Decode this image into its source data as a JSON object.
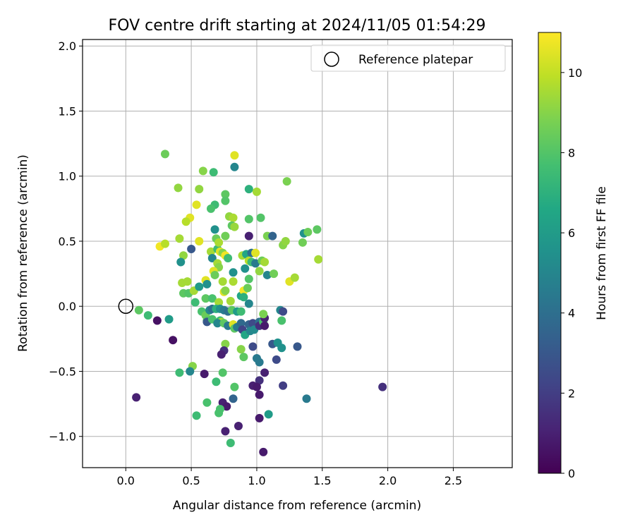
{
  "chart_data": {
    "type": "scatter",
    "title": "FOV centre drift starting at 2024/11/05 01:54:29",
    "xlabel": "Angular distance from reference (arcmin)",
    "ylabel": "Rotation from reference (arcmin)",
    "xlim": [
      -0.33,
      2.95
    ],
    "ylim": [
      -1.24,
      2.05
    ],
    "xticks": [
      0.0,
      0.5,
      1.0,
      1.5,
      2.0,
      2.5
    ],
    "xtick_labels": [
      "0.0",
      "0.5",
      "1.0",
      "1.5",
      "2.0",
      "2.5"
    ],
    "yticks": [
      -1.0,
      -0.5,
      0.0,
      0.5,
      1.0,
      1.5,
      2.0
    ],
    "ytick_labels": [
      "−1.0",
      "−0.5",
      "0.0",
      "0.5",
      "1.0",
      "1.5",
      "2.0"
    ],
    "grid": true,
    "legend": {
      "position": "top-right",
      "entries": [
        "Reference platepar"
      ]
    },
    "reference_point": {
      "x": 0.0,
      "y": 0.0
    },
    "colorbar": {
      "label": "Hours from first FF file",
      "colormap": "viridis",
      "range": [
        0,
        11
      ],
      "ticks": [
        0,
        2,
        4,
        6,
        8,
        10
      ],
      "tick_labels": [
        "0",
        "2",
        "4",
        "6",
        "8",
        "10"
      ]
    },
    "points": [
      {
        "x": 0.3,
        "y": 1.17,
        "c": 8.5
      },
      {
        "x": 0.83,
        "y": 1.16,
        "c": 10.5
      },
      {
        "x": 0.83,
        "y": 1.07,
        "c": 5.0
      },
      {
        "x": 0.59,
        "y": 1.04,
        "c": 9.0
      },
      {
        "x": 0.67,
        "y": 1.03,
        "c": 7.5
      },
      {
        "x": 0.4,
        "y": 0.91,
        "c": 9.2
      },
      {
        "x": 0.56,
        "y": 0.9,
        "c": 9.2
      },
      {
        "x": 0.94,
        "y": 0.9,
        "c": 7.0
      },
      {
        "x": 1.0,
        "y": 0.88,
        "c": 9.5
      },
      {
        "x": 1.23,
        "y": 0.96,
        "c": 8.8
      },
      {
        "x": 0.76,
        "y": 0.86,
        "c": 8.2
      },
      {
        "x": 0.76,
        "y": 0.81,
        "c": 8.0
      },
      {
        "x": 0.68,
        "y": 0.78,
        "c": 7.5
      },
      {
        "x": 0.54,
        "y": 0.78,
        "c": 10.5
      },
      {
        "x": 0.65,
        "y": 0.75,
        "c": 7.8
      },
      {
        "x": 0.49,
        "y": 0.68,
        "c": 10.5
      },
      {
        "x": 0.46,
        "y": 0.65,
        "c": 9.8
      },
      {
        "x": 0.79,
        "y": 0.69,
        "c": 9.2
      },
      {
        "x": 0.82,
        "y": 0.68,
        "c": 9.6
      },
      {
        "x": 0.94,
        "y": 0.67,
        "c": 8.0
      },
      {
        "x": 1.03,
        "y": 0.68,
        "c": 8.0
      },
      {
        "x": 0.68,
        "y": 0.59,
        "c": 5.5
      },
      {
        "x": 0.81,
        "y": 0.62,
        "c": 8.2
      },
      {
        "x": 0.83,
        "y": 0.61,
        "c": 9.3
      },
      {
        "x": 0.76,
        "y": 0.54,
        "c": 8.6
      },
      {
        "x": 0.69,
        "y": 0.52,
        "c": 8.5
      },
      {
        "x": 0.94,
        "y": 0.54,
        "c": 1.0
      },
      {
        "x": 1.08,
        "y": 0.54,
        "c": 8.8
      },
      {
        "x": 1.12,
        "y": 0.54,
        "c": 3.5
      },
      {
        "x": 1.2,
        "y": 0.47,
        "c": 9.0
      },
      {
        "x": 1.22,
        "y": 0.5,
        "c": 9.2
      },
      {
        "x": 1.36,
        "y": 0.56,
        "c": 5.5
      },
      {
        "x": 1.39,
        "y": 0.57,
        "c": 8.5
      },
      {
        "x": 1.46,
        "y": 0.59,
        "c": 8.2
      },
      {
        "x": 1.35,
        "y": 0.49,
        "c": 8.6
      },
      {
        "x": 1.47,
        "y": 0.36,
        "c": 9.5
      },
      {
        "x": 0.26,
        "y": 0.46,
        "c": 10.8
      },
      {
        "x": 0.3,
        "y": 0.48,
        "c": 9.8
      },
      {
        "x": 0.41,
        "y": 0.52,
        "c": 9.5
      },
      {
        "x": 0.56,
        "y": 0.5,
        "c": 10.5
      },
      {
        "x": 0.5,
        "y": 0.44,
        "c": 3.0
      },
      {
        "x": 0.44,
        "y": 0.39,
        "c": 9.2
      },
      {
        "x": 0.42,
        "y": 0.34,
        "c": 5.5
      },
      {
        "x": 0.65,
        "y": 0.42,
        "c": 9.5
      },
      {
        "x": 0.7,
        "y": 0.44,
        "c": 7.5
      },
      {
        "x": 0.72,
        "y": 0.42,
        "c": 10.5
      },
      {
        "x": 0.71,
        "y": 0.49,
        "c": 9.6
      },
      {
        "x": 0.74,
        "y": 0.41,
        "c": 9.0
      },
      {
        "x": 0.76,
        "y": 0.39,
        "c": 10.8
      },
      {
        "x": 0.78,
        "y": 0.37,
        "c": 7.5
      },
      {
        "x": 0.66,
        "y": 0.37,
        "c": 5.0
      },
      {
        "x": 0.7,
        "y": 0.33,
        "c": 9.5
      },
      {
        "x": 0.71,
        "y": 0.3,
        "c": 9.0
      },
      {
        "x": 0.67,
        "y": 0.27,
        "c": 10.5
      },
      {
        "x": 0.68,
        "y": 0.24,
        "c": 8.5
      },
      {
        "x": 0.89,
        "y": 0.39,
        "c": 9.5
      },
      {
        "x": 0.92,
        "y": 0.4,
        "c": 6.5
      },
      {
        "x": 0.96,
        "y": 0.41,
        "c": 4.0
      },
      {
        "x": 0.99,
        "y": 0.41,
        "c": 10.5
      },
      {
        "x": 0.94,
        "y": 0.35,
        "c": 9.8
      },
      {
        "x": 0.96,
        "y": 0.34,
        "c": 7.5
      },
      {
        "x": 0.99,
        "y": 0.33,
        "c": 4.5
      },
      {
        "x": 1.04,
        "y": 0.35,
        "c": 8.5
      },
      {
        "x": 1.06,
        "y": 0.34,
        "c": 9.5
      },
      {
        "x": 1.02,
        "y": 0.27,
        "c": 9.2
      },
      {
        "x": 1.08,
        "y": 0.24,
        "c": 5.0
      },
      {
        "x": 1.13,
        "y": 0.25,
        "c": 8.6
      },
      {
        "x": 1.25,
        "y": 0.19,
        "c": 10.5
      },
      {
        "x": 1.29,
        "y": 0.22,
        "c": 9.5
      },
      {
        "x": 0.82,
        "y": 0.26,
        "c": 5.5
      },
      {
        "x": 0.91,
        "y": 0.29,
        "c": 5.5
      },
      {
        "x": 0.94,
        "y": 0.21,
        "c": 8.0
      },
      {
        "x": 0.43,
        "y": 0.18,
        "c": 9.5
      },
      {
        "x": 0.47,
        "y": 0.19,
        "c": 9.5
      },
      {
        "x": 0.44,
        "y": 0.1,
        "c": 8.2
      },
      {
        "x": 0.48,
        "y": 0.1,
        "c": 8.0
      },
      {
        "x": 0.52,
        "y": 0.12,
        "c": 9.5
      },
      {
        "x": 0.56,
        "y": 0.15,
        "c": 6.0
      },
      {
        "x": 0.61,
        "y": 0.2,
        "c": 10.5
      },
      {
        "x": 0.62,
        "y": 0.17,
        "c": 5.5
      },
      {
        "x": 0.74,
        "y": 0.19,
        "c": 9.5
      },
      {
        "x": 0.82,
        "y": 0.19,
        "c": 9.6
      },
      {
        "x": 0.75,
        "y": 0.11,
        "c": 10.5
      },
      {
        "x": 0.76,
        "y": 0.12,
        "c": 9.0
      },
      {
        "x": 0.88,
        "y": 0.08,
        "c": 6.5
      },
      {
        "x": 0.9,
        "y": 0.12,
        "c": 10.8
      },
      {
        "x": 0.93,
        "y": 0.14,
        "c": 8.5
      },
      {
        "x": 0.9,
        "y": 0.07,
        "c": 7.0
      },
      {
        "x": 0.53,
        "y": 0.03,
        "c": 7.5
      },
      {
        "x": 0.61,
        "y": 0.06,
        "c": 8.2
      },
      {
        "x": 0.66,
        "y": 0.06,
        "c": 7.8
      },
      {
        "x": 0.71,
        "y": 0.03,
        "c": 9.5
      },
      {
        "x": 0.8,
        "y": 0.04,
        "c": 9.5
      },
      {
        "x": 0.94,
        "y": 0.02,
        "c": 5.0
      },
      {
        "x": 0.1,
        "y": -0.03,
        "c": 8.2
      },
      {
        "x": 0.17,
        "y": -0.07,
        "c": 7.5
      },
      {
        "x": 0.24,
        "y": -0.11,
        "c": 0.5
      },
      {
        "x": 0.33,
        "y": -0.1,
        "c": 6.0
      },
      {
        "x": 0.58,
        "y": -0.04,
        "c": 7.8
      },
      {
        "x": 0.61,
        "y": -0.07,
        "c": 8.5
      },
      {
        "x": 0.64,
        "y": -0.03,
        "c": 5.0
      },
      {
        "x": 0.66,
        "y": -0.02,
        "c": 4.0
      },
      {
        "x": 0.69,
        "y": -0.02,
        "c": 7.0
      },
      {
        "x": 0.72,
        "y": -0.02,
        "c": 5.5
      },
      {
        "x": 0.75,
        "y": -0.03,
        "c": 4.5
      },
      {
        "x": 0.78,
        "y": -0.04,
        "c": 4.0
      },
      {
        "x": 0.81,
        "y": -0.03,
        "c": 8.2
      },
      {
        "x": 0.85,
        "y": -0.04,
        "c": 6.0
      },
      {
        "x": 0.88,
        "y": -0.04,
        "c": 7.5
      },
      {
        "x": 0.62,
        "y": -0.11,
        "c": 8.2
      },
      {
        "x": 0.62,
        "y": -0.12,
        "c": 3.0
      },
      {
        "x": 0.66,
        "y": -0.1,
        "c": 7.8
      },
      {
        "x": 0.72,
        "y": -0.11,
        "c": 7.5
      },
      {
        "x": 0.73,
        "y": -0.12,
        "c": 9.5
      },
      {
        "x": 0.7,
        "y": -0.13,
        "c": 5.0
      },
      {
        "x": 0.75,
        "y": -0.13,
        "c": 8.2
      },
      {
        "x": 0.78,
        "y": -0.15,
        "c": 4.5
      },
      {
        "x": 0.82,
        "y": -0.14,
        "c": 10.5
      },
      {
        "x": 0.83,
        "y": -0.17,
        "c": 8.2
      },
      {
        "x": 0.85,
        "y": -0.16,
        "c": 4.5
      },
      {
        "x": 0.88,
        "y": -0.13,
        "c": 3.8
      },
      {
        "x": 0.89,
        "y": -0.18,
        "c": 2.2
      },
      {
        "x": 0.91,
        "y": -0.22,
        "c": 6.5
      },
      {
        "x": 0.94,
        "y": -0.14,
        "c": 3.5
      },
      {
        "x": 0.95,
        "y": -0.19,
        "c": 5.0
      },
      {
        "x": 0.97,
        "y": -0.13,
        "c": 2.5
      },
      {
        "x": 0.98,
        "y": -0.18,
        "c": 5.2
      },
      {
        "x": 1.02,
        "y": -0.12,
        "c": 4.0
      },
      {
        "x": 1.02,
        "y": -0.15,
        "c": 1.5
      },
      {
        "x": 1.05,
        "y": -0.12,
        "c": 7.8
      },
      {
        "x": 1.06,
        "y": -0.15,
        "c": 0.8
      },
      {
        "x": 1.06,
        "y": -0.09,
        "c": 1.0
      },
      {
        "x": 1.05,
        "y": -0.06,
        "c": 8.8
      },
      {
        "x": 1.12,
        "y": -0.29,
        "c": 3.0
      },
      {
        "x": 1.16,
        "y": -0.28,
        "c": 5.5
      },
      {
        "x": 1.18,
        "y": -0.03,
        "c": 5.0
      },
      {
        "x": 1.2,
        "y": -0.04,
        "c": 2.5
      },
      {
        "x": 1.19,
        "y": -0.11,
        "c": 7.8
      },
      {
        "x": 1.19,
        "y": -0.32,
        "c": 5.5
      },
      {
        "x": 0.36,
        "y": -0.26,
        "c": 0.5
      },
      {
        "x": 0.76,
        "y": -0.29,
        "c": 9.0
      },
      {
        "x": 0.75,
        "y": -0.34,
        "c": 1.5
      },
      {
        "x": 0.73,
        "y": -0.37,
        "c": 1.0
      },
      {
        "x": 0.88,
        "y": -0.33,
        "c": 9.0
      },
      {
        "x": 0.9,
        "y": -0.39,
        "c": 8.2
      },
      {
        "x": 0.97,
        "y": -0.31,
        "c": 2.5
      },
      {
        "x": 1.0,
        "y": -0.4,
        "c": 4.5
      },
      {
        "x": 1.02,
        "y": -0.43,
        "c": 4.5
      },
      {
        "x": 1.15,
        "y": -0.41,
        "c": 2.5
      },
      {
        "x": 1.31,
        "y": -0.31,
        "c": 3.0
      },
      {
        "x": 0.51,
        "y": -0.46,
        "c": 9.0
      },
      {
        "x": 0.49,
        "y": -0.5,
        "c": 5.0
      },
      {
        "x": 0.41,
        "y": -0.51,
        "c": 7.5
      },
      {
        "x": 0.6,
        "y": -0.52,
        "c": 0.8
      },
      {
        "x": 0.74,
        "y": -0.51,
        "c": 8.0
      },
      {
        "x": 0.69,
        "y": -0.58,
        "c": 7.5
      },
      {
        "x": 1.06,
        "y": -0.51,
        "c": 1.0
      },
      {
        "x": 1.02,
        "y": -0.57,
        "c": 1.5
      },
      {
        "x": 0.97,
        "y": -0.61,
        "c": 1.0
      },
      {
        "x": 1.0,
        "y": -0.62,
        "c": 0.8
      },
      {
        "x": 1.2,
        "y": -0.61,
        "c": 2.0
      },
      {
        "x": 0.83,
        "y": -0.62,
        "c": 8.0
      },
      {
        "x": 1.02,
        "y": -0.68,
        "c": 0.8
      },
      {
        "x": 0.08,
        "y": -0.7,
        "c": 1.0
      },
      {
        "x": 0.82,
        "y": -0.71,
        "c": 3.5
      },
      {
        "x": 1.38,
        "y": -0.71,
        "c": 4.5
      },
      {
        "x": 1.96,
        "y": -0.62,
        "c": 1.5
      },
      {
        "x": 0.62,
        "y": -0.74,
        "c": 7.8
      },
      {
        "x": 0.74,
        "y": -0.74,
        "c": 1.0
      },
      {
        "x": 0.77,
        "y": -0.77,
        "c": 0.8
      },
      {
        "x": 0.72,
        "y": -0.79,
        "c": 7.8
      },
      {
        "x": 0.71,
        "y": -0.82,
        "c": 7.8
      },
      {
        "x": 0.54,
        "y": -0.84,
        "c": 7.5
      },
      {
        "x": 1.09,
        "y": -0.83,
        "c": 6.0
      },
      {
        "x": 1.02,
        "y": -0.86,
        "c": 0.8
      },
      {
        "x": 0.86,
        "y": -0.92,
        "c": 1.0
      },
      {
        "x": 0.76,
        "y": -0.96,
        "c": 1.0
      },
      {
        "x": 0.8,
        "y": -1.05,
        "c": 7.5
      },
      {
        "x": 1.05,
        "y": -1.12,
        "c": 0.8
      }
    ]
  }
}
